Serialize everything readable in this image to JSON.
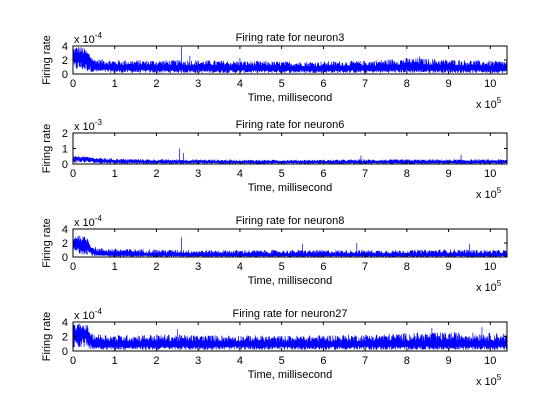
{
  "chart_data": [
    {
      "type": "line",
      "title": "Firing rate for neuron3",
      "xlabel": "Time, millisecond",
      "ylabel": "Firing rate",
      "x_multiplier": "x 10",
      "x_exponent": "5",
      "y_multiplier": "x 10",
      "y_exponent": "-4",
      "xlim": [
        0,
        10.4
      ],
      "ylim": [
        0,
        4
      ],
      "xticks": [
        "0",
        "1",
        "2",
        "3",
        "4",
        "5",
        "6",
        "7",
        "8",
        "9",
        "10"
      ],
      "yticks": [
        "0",
        "2",
        "4"
      ],
      "color": "#0000ff",
      "profile": {
        "x": [
          0,
          0.1,
          0.2,
          0.3,
          0.4,
          0.5,
          1,
          2,
          3,
          4,
          5,
          6,
          7,
          8,
          9,
          10,
          10.4
        ],
        "baseline": [
          2.2,
          2.4,
          2.3,
          2.0,
          1.6,
          1.0,
          0.8,
          0.75,
          0.75,
          0.7,
          0.7,
          0.7,
          0.7,
          0.8,
          0.75,
          0.7,
          0.7
        ],
        "peak": [
          3.8,
          4.0,
          3.9,
          3.6,
          3.0,
          2.2,
          2.0,
          2.0,
          2.0,
          1.9,
          1.8,
          1.8,
          1.9,
          2.3,
          2.1,
          1.9,
          1.9
        ]
      },
      "spikes": [
        [
          2.6,
          3.9
        ],
        [
          2.8,
          2.6
        ],
        [
          4.0,
          2.3
        ],
        [
          8.3,
          2.5
        ]
      ]
    },
    {
      "type": "line",
      "title": "Firing rate for neuron6",
      "xlabel": "Time, millisecond",
      "ylabel": "Firing rate",
      "x_multiplier": "x 10",
      "x_exponent": "5",
      "y_multiplier": "x 10",
      "y_exponent": "-3",
      "xlim": [
        0,
        10.4
      ],
      "ylim": [
        0,
        2
      ],
      "xticks": [
        "0",
        "1",
        "2",
        "3",
        "4",
        "5",
        "6",
        "7",
        "8",
        "9",
        "10"
      ],
      "yticks": [
        "0",
        "1",
        "2"
      ],
      "color": "#0000ff",
      "profile": {
        "x": [
          0,
          0.2,
          0.4,
          0.6,
          1,
          2,
          3,
          4,
          5,
          6,
          7,
          8,
          9,
          10,
          10.4
        ],
        "baseline": [
          0.35,
          0.35,
          0.3,
          0.2,
          0.15,
          0.12,
          0.12,
          0.1,
          0.1,
          0.1,
          0.1,
          0.1,
          0.1,
          0.1,
          0.1
        ],
        "peak": [
          0.5,
          0.5,
          0.45,
          0.4,
          0.35,
          0.3,
          0.3,
          0.28,
          0.28,
          0.28,
          0.3,
          0.3,
          0.3,
          0.3,
          0.3
        ]
      },
      "spikes": [
        [
          2.55,
          1.0
        ],
        [
          2.65,
          0.7
        ],
        [
          6.9,
          0.55
        ],
        [
          9.3,
          0.6
        ]
      ]
    },
    {
      "type": "line",
      "title": "Firing rate for neuron8",
      "xlabel": "Time, millisecond",
      "ylabel": "Firing rate",
      "x_multiplier": "x 10",
      "x_exponent": "5",
      "y_multiplier": "x 10",
      "y_exponent": "-4",
      "xlim": [
        0,
        10.4
      ],
      "ylim": [
        0,
        4
      ],
      "xticks": [
        "0",
        "1",
        "2",
        "3",
        "4",
        "5",
        "6",
        "7",
        "8",
        "9",
        "10"
      ],
      "yticks": [
        "0",
        "2",
        "4"
      ],
      "color": "#0000ff",
      "profile": {
        "x": [
          0,
          0.1,
          0.2,
          0.35,
          0.45,
          0.6,
          1,
          2,
          3,
          4,
          5,
          6,
          7,
          8,
          9,
          10,
          10.4
        ],
        "baseline": [
          1.8,
          2.0,
          1.9,
          1.7,
          0.8,
          0.4,
          0.3,
          0.25,
          0.2,
          0.2,
          0.2,
          0.2,
          0.2,
          0.2,
          0.2,
          0.2,
          0.2
        ],
        "peak": [
          3.0,
          3.2,
          3.0,
          2.8,
          1.6,
          1.3,
          1.2,
          1.1,
          1.0,
          1.0,
          1.0,
          1.0,
          1.0,
          1.0,
          1.1,
          1.0,
          1.0
        ]
      },
      "spikes": [
        [
          2.6,
          2.8
        ],
        [
          5.5,
          1.9
        ],
        [
          6.8,
          2.0
        ],
        [
          9.5,
          1.8
        ]
      ]
    },
    {
      "type": "line",
      "title": "Firing rate for neuron27",
      "xlabel": "Time, millisecond",
      "ylabel": "Firing rate",
      "x_multiplier": "x 10",
      "x_exponent": "5",
      "y_multiplier": "x 10",
      "y_exponent": "-4",
      "xlim": [
        0,
        10.4
      ],
      "ylim": [
        0,
        4
      ],
      "xticks": [
        "0",
        "1",
        "2",
        "3",
        "4",
        "5",
        "6",
        "7",
        "8",
        "9",
        "10"
      ],
      "yticks": [
        "0",
        "2",
        "4"
      ],
      "color": "#0000ff",
      "profile": {
        "x": [
          0,
          0.1,
          0.2,
          0.35,
          0.45,
          1,
          2,
          3,
          4,
          5,
          6,
          7,
          8,
          9,
          10,
          10.4
        ],
        "baseline": [
          2.2,
          2.4,
          2.3,
          2.2,
          1.0,
          0.8,
          0.8,
          0.8,
          0.8,
          0.8,
          0.8,
          0.8,
          0.8,
          0.8,
          0.8,
          0.8
        ],
        "peak": [
          3.6,
          3.8,
          3.8,
          3.6,
          2.4,
          2.2,
          2.3,
          2.2,
          2.2,
          2.1,
          2.2,
          2.3,
          2.5,
          2.6,
          2.5,
          2.5
        ]
      },
      "spikes": [
        [
          2.5,
          3.0
        ],
        [
          8.6,
          3.2
        ],
        [
          9.8,
          3.3
        ]
      ]
    }
  ]
}
